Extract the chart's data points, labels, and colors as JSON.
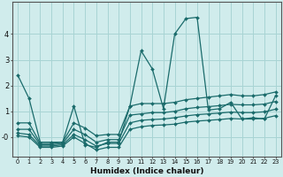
{
  "title": "",
  "xlabel": "Humidex (Indice chaleur)",
  "x_values": [
    0,
    1,
    2,
    3,
    4,
    5,
    6,
    7,
    8,
    9,
    10,
    11,
    12,
    13,
    14,
    15,
    16,
    17,
    18,
    19,
    20,
    21,
    22,
    23
  ],
  "line1": [
    2.4,
    1.5,
    -0.2,
    -0.2,
    -0.2,
    1.2,
    -0.3,
    -0.4,
    -0.2,
    -0.2,
    1.2,
    3.35,
    2.65,
    1.1,
    4.0,
    4.6,
    4.65,
    1.05,
    1.1,
    1.35,
    0.7,
    0.75,
    0.7,
    1.6
  ],
  "line2": [
    0.55,
    0.55,
    -0.25,
    -0.25,
    -0.2,
    0.55,
    0.35,
    0.05,
    0.1,
    0.1,
    1.2,
    1.3,
    1.3,
    1.3,
    1.35,
    1.45,
    1.5,
    1.55,
    1.6,
    1.65,
    1.6,
    1.6,
    1.65,
    1.75
  ],
  "line3": [
    0.3,
    0.3,
    -0.3,
    -0.3,
    -0.25,
    0.3,
    0.1,
    -0.2,
    -0.1,
    -0.1,
    0.85,
    0.9,
    0.95,
    0.95,
    1.0,
    1.1,
    1.15,
    1.18,
    1.22,
    1.27,
    1.25,
    1.25,
    1.28,
    1.38
  ],
  "line4": [
    0.15,
    0.1,
    -0.35,
    -0.35,
    -0.3,
    0.1,
    -0.1,
    -0.35,
    -0.25,
    -0.25,
    0.55,
    0.65,
    0.68,
    0.7,
    0.75,
    0.82,
    0.87,
    0.9,
    0.93,
    0.97,
    0.95,
    0.95,
    0.98,
    1.08
  ],
  "line5": [
    0.05,
    0.0,
    -0.4,
    -0.4,
    -0.35,
    0.0,
    -0.25,
    -0.5,
    -0.4,
    -0.4,
    0.3,
    0.4,
    0.45,
    0.47,
    0.5,
    0.58,
    0.62,
    0.65,
    0.68,
    0.72,
    0.7,
    0.7,
    0.73,
    0.83
  ],
  "bg_color": "#d0ecec",
  "grid_color": "#a8d4d4",
  "line_color": "#1a6b6b",
  "ylim": [
    -0.75,
    5.25
  ],
  "yticks": [
    0,
    1,
    2,
    3,
    4
  ],
  "ytick_labels": [
    "-0",
    "1",
    "2",
    "3",
    "4"
  ],
  "xlim": [
    -0.5,
    23.5
  ],
  "marker": "D",
  "markersize": 2.0,
  "linewidth": 0.9
}
